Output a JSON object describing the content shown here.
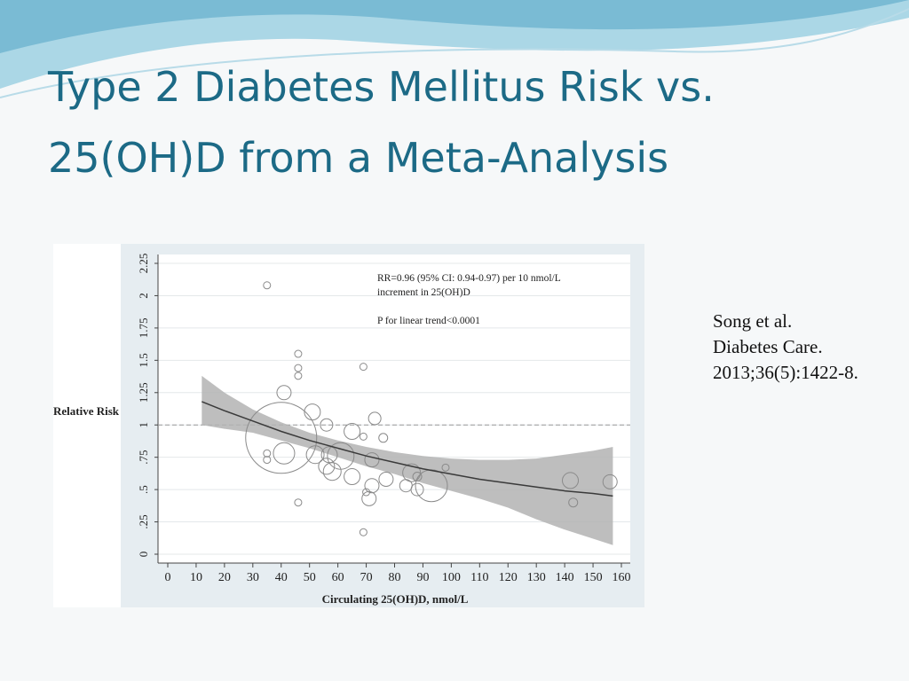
{
  "slide": {
    "title": [
      "Type 2 Diabetes Mellitus Risk vs.",
      "25(OH)D from a Meta-Analysis"
    ],
    "citation": [
      "Song et al.",
      "Diabetes Care.",
      "2013;36(5):1422-8."
    ]
  },
  "chart_data": {
    "type": "scatter",
    "x_label": "Circulating  25(OH)D, nmol/L",
    "y_label": "Relative Risk",
    "annotations": [
      "RR=0.96 (95% CI: 0.94-0.97) per 10 nmol/L",
      "increment in 25(OH)D",
      "P for linear trend<0.0001"
    ],
    "xlim": [
      0,
      160
    ],
    "xticks": [
      0,
      10,
      20,
      30,
      40,
      50,
      60,
      70,
      80,
      90,
      100,
      110,
      120,
      130,
      140,
      150,
      160
    ],
    "ylim": [
      0,
      2.25
    ],
    "yticks": [
      0,
      {
        "value": 0.25,
        "label": ".25"
      },
      {
        "value": 0.5,
        "label": ".5"
      },
      {
        "value": 0.75,
        "label": ".75"
      },
      1,
      1.25,
      1.5,
      1.75,
      2,
      2.25
    ],
    "grid": true,
    "reference_line": 1,
    "color": "#8a8a8a",
    "band_color": "#b3b3b3",
    "line_color": "#3a3a3a",
    "x": [
      35,
      46,
      46,
      46,
      69,
      41,
      51,
      56,
      73,
      65,
      76,
      69,
      35,
      35,
      40,
      41,
      52,
      57,
      61,
      56,
      58,
      65,
      72,
      72,
      71,
      77,
      84,
      86,
      88,
      88,
      93,
      98,
      70,
      46,
      69,
      142,
      143,
      156
    ],
    "y": [
      2.08,
      1.55,
      1.44,
      1.38,
      1.45,
      1.25,
      1.1,
      1.0,
      1.05,
      0.95,
      0.9,
      0.91,
      0.78,
      0.73,
      0.9,
      0.78,
      0.77,
      0.77,
      0.76,
      0.68,
      0.64,
      0.6,
      0.73,
      0.53,
      0.43,
      0.58,
      0.53,
      0.63,
      0.6,
      0.5,
      0.53,
      0.67,
      0.48,
      0.4,
      0.17,
      0.57,
      0.4,
      0.56
    ],
    "sizes": [
      4,
      4,
      4,
      4,
      4,
      8,
      9,
      7,
      7,
      9,
      5,
      4,
      4,
      4,
      40,
      12,
      10,
      9,
      15,
      9,
      10,
      9,
      8,
      8,
      8,
      8,
      7,
      10,
      5,
      7,
      18,
      4,
      4,
      4,
      4,
      9,
      5,
      8
    ],
    "fit": {
      "x": [
        12,
        20,
        30,
        40,
        50,
        60,
        70,
        80,
        90,
        100,
        110,
        120,
        130,
        140,
        150,
        157
      ],
      "y": [
        1.18,
        1.11,
        1.03,
        0.95,
        0.88,
        0.82,
        0.76,
        0.71,
        0.66,
        0.62,
        0.58,
        0.55,
        0.52,
        0.49,
        0.47,
        0.45
      ],
      "upper": [
        1.38,
        1.25,
        1.12,
        1.02,
        0.94,
        0.88,
        0.83,
        0.79,
        0.76,
        0.74,
        0.73,
        0.73,
        0.74,
        0.77,
        0.8,
        0.83
      ],
      "lower": [
        1.0,
        0.97,
        0.94,
        0.88,
        0.82,
        0.75,
        0.68,
        0.62,
        0.55,
        0.49,
        0.43,
        0.36,
        0.27,
        0.19,
        0.12,
        0.07
      ]
    }
  }
}
